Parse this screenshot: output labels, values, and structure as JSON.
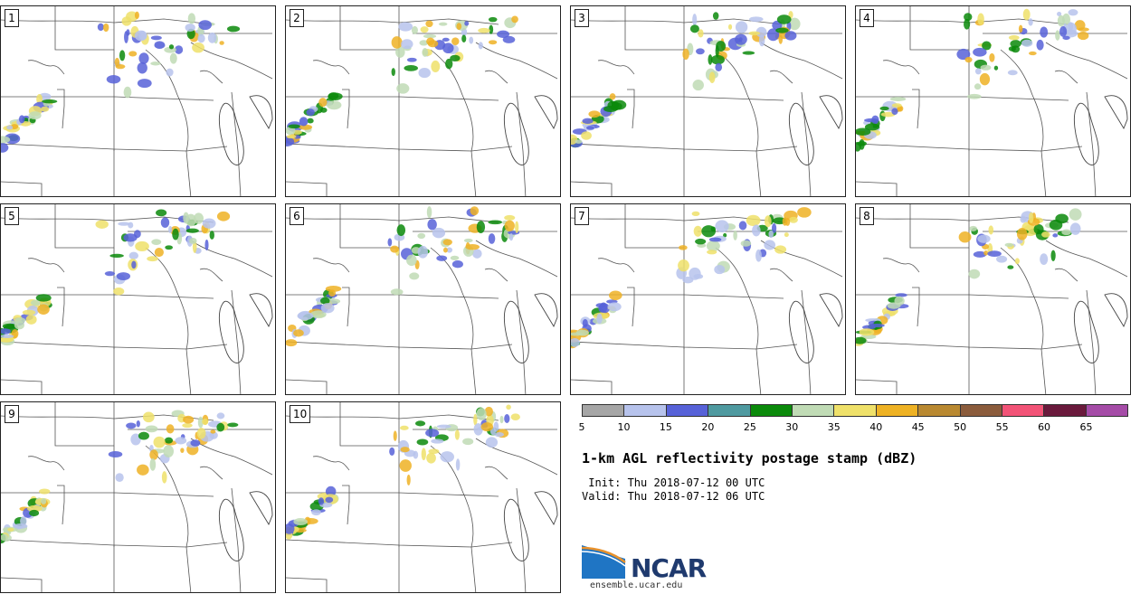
{
  "panels": [
    {
      "label": "1"
    },
    {
      "label": "2"
    },
    {
      "label": "3"
    },
    {
      "label": "4"
    },
    {
      "label": "5"
    },
    {
      "label": "6"
    },
    {
      "label": "7"
    },
    {
      "label": "8"
    },
    {
      "label": "9"
    },
    {
      "label": "10"
    }
  ],
  "colorbar": {
    "colors": [
      "#a6a6a6",
      "#b7c3ec",
      "#5762d8",
      "#4f9aa0",
      "#0b8a0b",
      "#c0dbb5",
      "#efe16a",
      "#eeb224",
      "#b98931",
      "#8b5c3c",
      "#f25377",
      "#6a1a3c",
      "#a54ca7"
    ],
    "ticks": [
      "5",
      "10",
      "15",
      "20",
      "25",
      "30",
      "35",
      "40",
      "45",
      "50",
      "55",
      "60",
      "65"
    ]
  },
  "title": "1-km AGL reflectivity postage stamp (dBZ)",
  "init_line": " Init: Thu 2018-07-12 00 UTC",
  "valid_line": "Valid: Thu 2018-07-12 06 UTC",
  "logo": {
    "text": "NCAR",
    "url": "ensemble.ucar.edu"
  }
}
